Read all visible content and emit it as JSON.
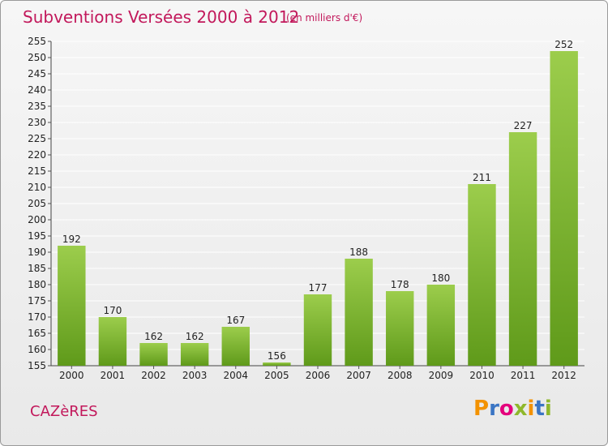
{
  "header": {
    "title": "Subventions Versées 2000 à 2012",
    "subtitle": "(en milliers d'€)"
  },
  "footer": {
    "commune": "CAZèRES",
    "logo_letters": [
      "P",
      "r",
      "o",
      "x",
      "i",
      "t",
      "i"
    ]
  },
  "colors": {
    "title": "#c2185b",
    "bar_light": "#9ccd4c",
    "bar_dark": "#5f9a1a",
    "grid": "#ffffff",
    "logo": [
      "#f39200",
      "#3a75c4",
      "#e4007c",
      "#8fb82c",
      "#f39200",
      "#3a75c4",
      "#8fb82c"
    ]
  },
  "chart_data": {
    "type": "bar",
    "title": "Subventions Versées 2000 à 2012",
    "categories": [
      "2000",
      "2001",
      "2002",
      "2003",
      "2004",
      "2005",
      "2006",
      "2007",
      "2008",
      "2009",
      "2010",
      "2011",
      "2012"
    ],
    "values": [
      192,
      170,
      162,
      162,
      167,
      156,
      177,
      188,
      178,
      180,
      211,
      227,
      252
    ],
    "ylim": [
      155,
      255
    ],
    "yticks": [
      155,
      160,
      165,
      170,
      175,
      180,
      185,
      190,
      195,
      200,
      205,
      210,
      215,
      220,
      225,
      230,
      235,
      240,
      245,
      250,
      255
    ],
    "grid": true,
    "xlabel": "",
    "ylabel": ""
  }
}
